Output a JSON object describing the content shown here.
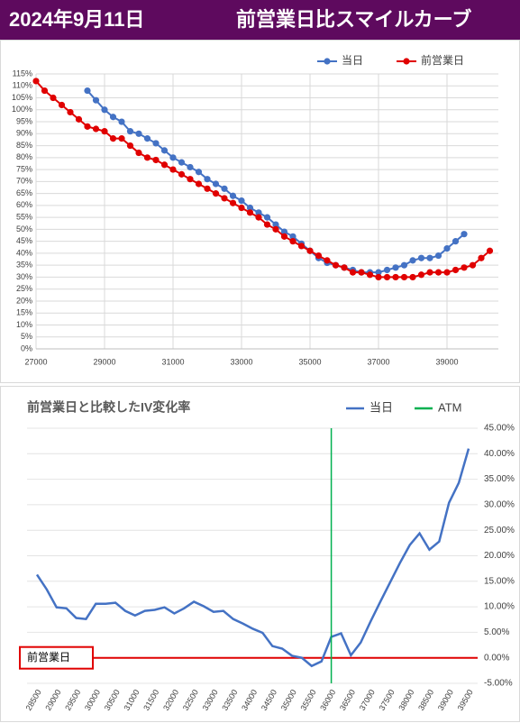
{
  "header": {
    "date": "2024年9月11日",
    "title": "前営業日比スマイルカーブ"
  },
  "chart_data": [
    {
      "type": "scatter-line",
      "legend": "top-right",
      "grid": true,
      "xlim": [
        27000,
        40500
      ],
      "xticks": [
        27000,
        29000,
        31000,
        33000,
        35000,
        37000,
        39000
      ],
      "ylim": [
        0,
        115
      ],
      "yticks": [
        {
          "value": 0,
          "label": "0%"
        },
        {
          "value": 5,
          "label": "5%"
        },
        {
          "value": 10,
          "label": "10%"
        },
        {
          "value": 15,
          "label": "15%"
        },
        {
          "value": 20,
          "label": "20%"
        },
        {
          "value": 25,
          "label": "25%"
        },
        {
          "value": 30,
          "label": "30%"
        },
        {
          "value": 35,
          "label": "35%"
        },
        {
          "value": 40,
          "label": "40%"
        },
        {
          "value": 45,
          "label": "45%"
        },
        {
          "value": 50,
          "label": "50%"
        },
        {
          "value": 55,
          "label": "55%"
        },
        {
          "value": 60,
          "label": "60%"
        },
        {
          "value": 65,
          "label": "65%"
        },
        {
          "value": 70,
          "label": "70%"
        },
        {
          "value": 75,
          "label": "75%"
        },
        {
          "value": 80,
          "label": "80%"
        },
        {
          "value": 85,
          "label": "85%"
        },
        {
          "value": 90,
          "label": "90%"
        },
        {
          "value": 95,
          "label": "95%"
        },
        {
          "value": 100,
          "label": "100%"
        },
        {
          "value": 105,
          "label": "105%"
        },
        {
          "value": 110,
          "label": "110%"
        },
        {
          "value": 115,
          "label": "115%"
        }
      ],
      "series": [
        {
          "name": "当日",
          "color": "#4472c4",
          "x": [
            28500,
            28750,
            29000,
            29250,
            29500,
            29750,
            30000,
            30250,
            30500,
            30750,
            31000,
            31250,
            31500,
            31750,
            32000,
            32250,
            32500,
            32750,
            33000,
            33250,
            33500,
            33750,
            34000,
            34250,
            34500,
            34750,
            35000,
            35250,
            35500,
            35750,
            36000,
            36250,
            36500,
            36750,
            37000,
            37250,
            37500,
            37750,
            38000,
            38250,
            38500,
            38750,
            39000,
            39250,
            39500
          ],
          "values": [
            108,
            104,
            100,
            97,
            95,
            91,
            90,
            88,
            86,
            83,
            80,
            78,
            76,
            74,
            71,
            69,
            67,
            64,
            62,
            59,
            57,
            55,
            52,
            49,
            47,
            44,
            41,
            38,
            36,
            35,
            34,
            33,
            32,
            32,
            32,
            33,
            34,
            35,
            37,
            38,
            38,
            39,
            42,
            45,
            48
          ]
        },
        {
          "name": "前営業日",
          "color": "#e00000",
          "x": [
            27000,
            27250,
            27500,
            27750,
            28000,
            28250,
            28500,
            28750,
            29000,
            29250,
            29500,
            29750,
            30000,
            30250,
            30500,
            30750,
            31000,
            31250,
            31500,
            31750,
            32000,
            32250,
            32500,
            32750,
            33000,
            33250,
            33500,
            33750,
            34000,
            34250,
            34500,
            34750,
            35000,
            35250,
            35500,
            35750,
            36000,
            36250,
            36500,
            36750,
            37000,
            37250,
            37500,
            37750,
            38000,
            38250,
            38500,
            38750,
            39000,
            39250,
            39500,
            39750,
            40000,
            40250
          ],
          "values": [
            112,
            108,
            105,
            102,
            99,
            96,
            93,
            92,
            91,
            88,
            88,
            85,
            82,
            80,
            79,
            77,
            75,
            73,
            71,
            69,
            67,
            65,
            63,
            61,
            59,
            57,
            55,
            52,
            50,
            47,
            45,
            43,
            41,
            39,
            37,
            35,
            34,
            32,
            32,
            31,
            30,
            30,
            30,
            30,
            30,
            31,
            32,
            32,
            32,
            33,
            34,
            35,
            38,
            41
          ]
        }
      ]
    },
    {
      "type": "line",
      "title": "前営業日と比較したIV変化率",
      "grid": true,
      "categories": [
        28500,
        null,
        29000,
        null,
        29500,
        null,
        30000,
        null,
        30500,
        null,
        31000,
        null,
        31500,
        null,
        32000,
        null,
        32500,
        null,
        33000,
        null,
        33500,
        null,
        34000,
        null,
        34500,
        null,
        35000,
        null,
        35500,
        null,
        36000,
        null,
        36500,
        null,
        37000,
        null,
        37500,
        null,
        38000,
        null,
        38500,
        null,
        39000,
        null,
        39500
      ],
      "y2lim": [
        -5,
        45
      ],
      "y2ticks": [
        {
          "value": -5,
          "label": "-5.00%"
        },
        {
          "value": 0,
          "label": "0.00%"
        },
        {
          "value": 5,
          "label": "5.00%"
        },
        {
          "value": 10,
          "label": "10.00%"
        },
        {
          "value": 15,
          "label": "15.00%"
        },
        {
          "value": 20,
          "label": "20.00%"
        },
        {
          "value": 25,
          "label": "25.00%"
        },
        {
          "value": 30,
          "label": "30.00%"
        },
        {
          "value": 35,
          "label": "35.00%"
        },
        {
          "value": 40,
          "label": "40.00%"
        },
        {
          "value": 45,
          "label": "45.00%"
        }
      ],
      "series": [
        {
          "name": "当日",
          "color": "#4472c4",
          "axis": "y2",
          "values": [
            16.3,
            13.4,
            9.9,
            9.7,
            7.8,
            7.6,
            10.6,
            10.6,
            10.8,
            9.2,
            8.3,
            9.2,
            9.4,
            9.9,
            8.7,
            9.7,
            11.0,
            10.1,
            9.0,
            9.2,
            7.6,
            6.7,
            5.7,
            4.9,
            2.3,
            1.8,
            0.4,
            0,
            -1.6,
            -0.7,
            4.1,
            4.8,
            0.5,
            3.0,
            7.1,
            11.0,
            14.8,
            18.6,
            22.1,
            24.4,
            21.2,
            22.8,
            30.4,
            34.3,
            41.0
          ]
        },
        {
          "name": "ATM",
          "color": "#00b050",
          "category": 36000
        }
      ],
      "reference_line": {
        "label": "前営業日",
        "value": 0,
        "color": "#e00000"
      }
    }
  ]
}
